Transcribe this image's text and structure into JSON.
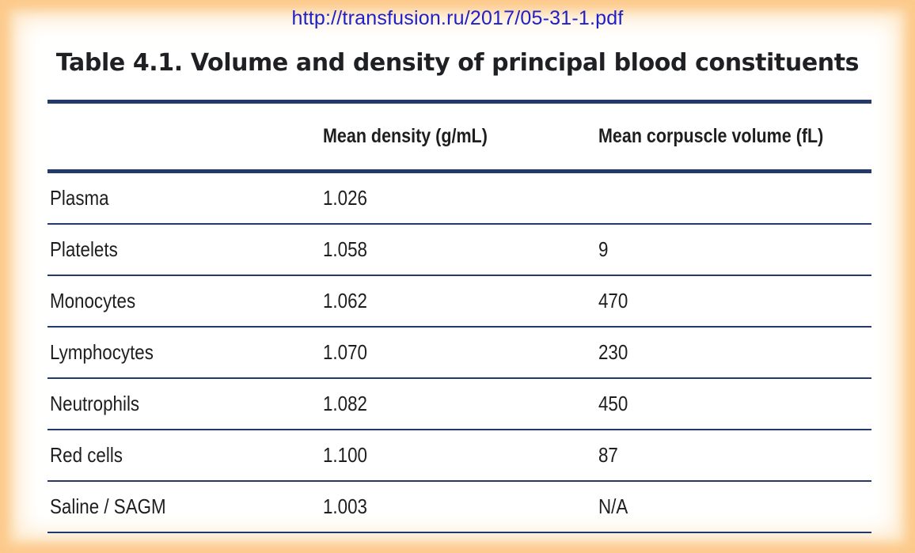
{
  "source_url": "http://transfusion.ru/2017/05-31-1.pdf",
  "title": "Table 4.1. Volume and density of principal blood constituents",
  "table": {
    "columns": [
      "",
      "Mean density (g/mL)",
      "Mean corpuscle volume (fL)"
    ],
    "rows": [
      [
        "Plasma",
        "1.026",
        ""
      ],
      [
        "Platelets",
        "1.058",
        "9"
      ],
      [
        "Monocytes",
        "1.062",
        "470"
      ],
      [
        "Lymphocytes",
        "1.070",
        "230"
      ],
      [
        "Neutrophils",
        "1.082",
        "450"
      ],
      [
        "Red cells",
        "1.100",
        "87"
      ],
      [
        "Saline / SAGM",
        "1.003",
        "N/A"
      ]
    ]
  },
  "colors": {
    "frame_glow": "#fcc98a",
    "url_text": "#2020c8",
    "rule_lines": "#243a6b",
    "text": "#1e1e1e"
  }
}
